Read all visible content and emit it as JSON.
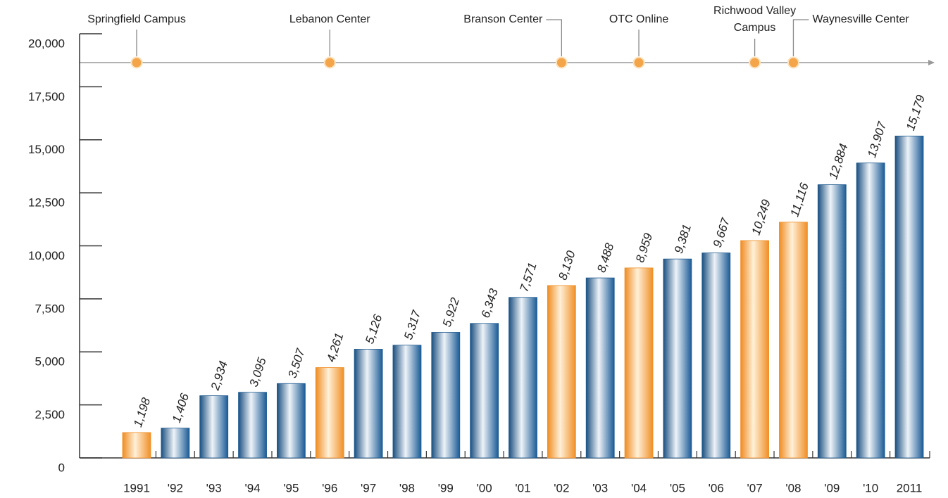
{
  "chart_data": {
    "type": "bar",
    "categories": [
      "1991",
      "'92",
      "'93",
      "'94",
      "'95",
      "'96",
      "'97",
      "'98",
      "'99",
      "'00",
      "'01",
      "'02",
      "'03",
      "'04",
      "'05",
      "'06",
      "'07",
      "'08",
      "'09",
      "'10",
      "2011"
    ],
    "values": [
      1198,
      1406,
      2934,
      3095,
      3507,
      4261,
      5126,
      5317,
      5922,
      6343,
      7571,
      8130,
      8488,
      8959,
      9381,
      9667,
      10249,
      11116,
      12884,
      13907,
      15179
    ],
    "value_labels": [
      "1,198",
      "1,406",
      "2,934",
      "3,095",
      "3,507",
      "4,261",
      "5,126",
      "5,317",
      "5,922",
      "6,343",
      "7,571",
      "8,130",
      "8,488",
      "8,959",
      "9,381",
      "9,667",
      "10,249",
      "11,116",
      "12,884",
      "13,907",
      "15,179"
    ],
    "colors": [
      "#f0902a",
      "#1f5a8f",
      "#1f5a8f",
      "#1f5a8f",
      "#1f5a8f",
      "#f0902a",
      "#1f5a8f",
      "#1f5a8f",
      "#1f5a8f",
      "#1f5a8f",
      "#1f5a8f",
      "#f0902a",
      "#1f5a8f",
      "#f0902a",
      "#1f5a8f",
      "#1f5a8f",
      "#f0902a",
      "#f0902a",
      "#1f5a8f",
      "#1f5a8f",
      "#1f5a8f"
    ],
    "ylim": [
      0,
      20000
    ],
    "yticks": [
      0,
      {
        "value": 2500,
        "label": "2,500"
      },
      {
        "value": 5000,
        "label": "5,000"
      },
      {
        "value": 7500,
        "label": "7,500"
      },
      {
        "value": 10000,
        "label": "10,000"
      },
      {
        "value": 12500,
        "label": "12,500"
      },
      {
        "value": 15000,
        "label": "15,000"
      },
      {
        "value": 17500,
        "label": "17,500"
      },
      {
        "value": 20000,
        "label": "20,000"
      }
    ],
    "grid": false,
    "milestones": [
      {
        "category": "1991",
        "label": [
          "Springfield Campus"
        ]
      },
      {
        "category": "'96",
        "label": [
          "Lebanon Center"
        ]
      },
      {
        "category": "'02",
        "label": [
          "Branson Center"
        ]
      },
      {
        "category": "'04",
        "label": [
          "OTC Online"
        ]
      },
      {
        "category": "'07",
        "label": [
          "Richwood Valley",
          "Campus"
        ]
      },
      {
        "category": "'08",
        "label": [
          "Waynesville Center"
        ]
      }
    ]
  }
}
